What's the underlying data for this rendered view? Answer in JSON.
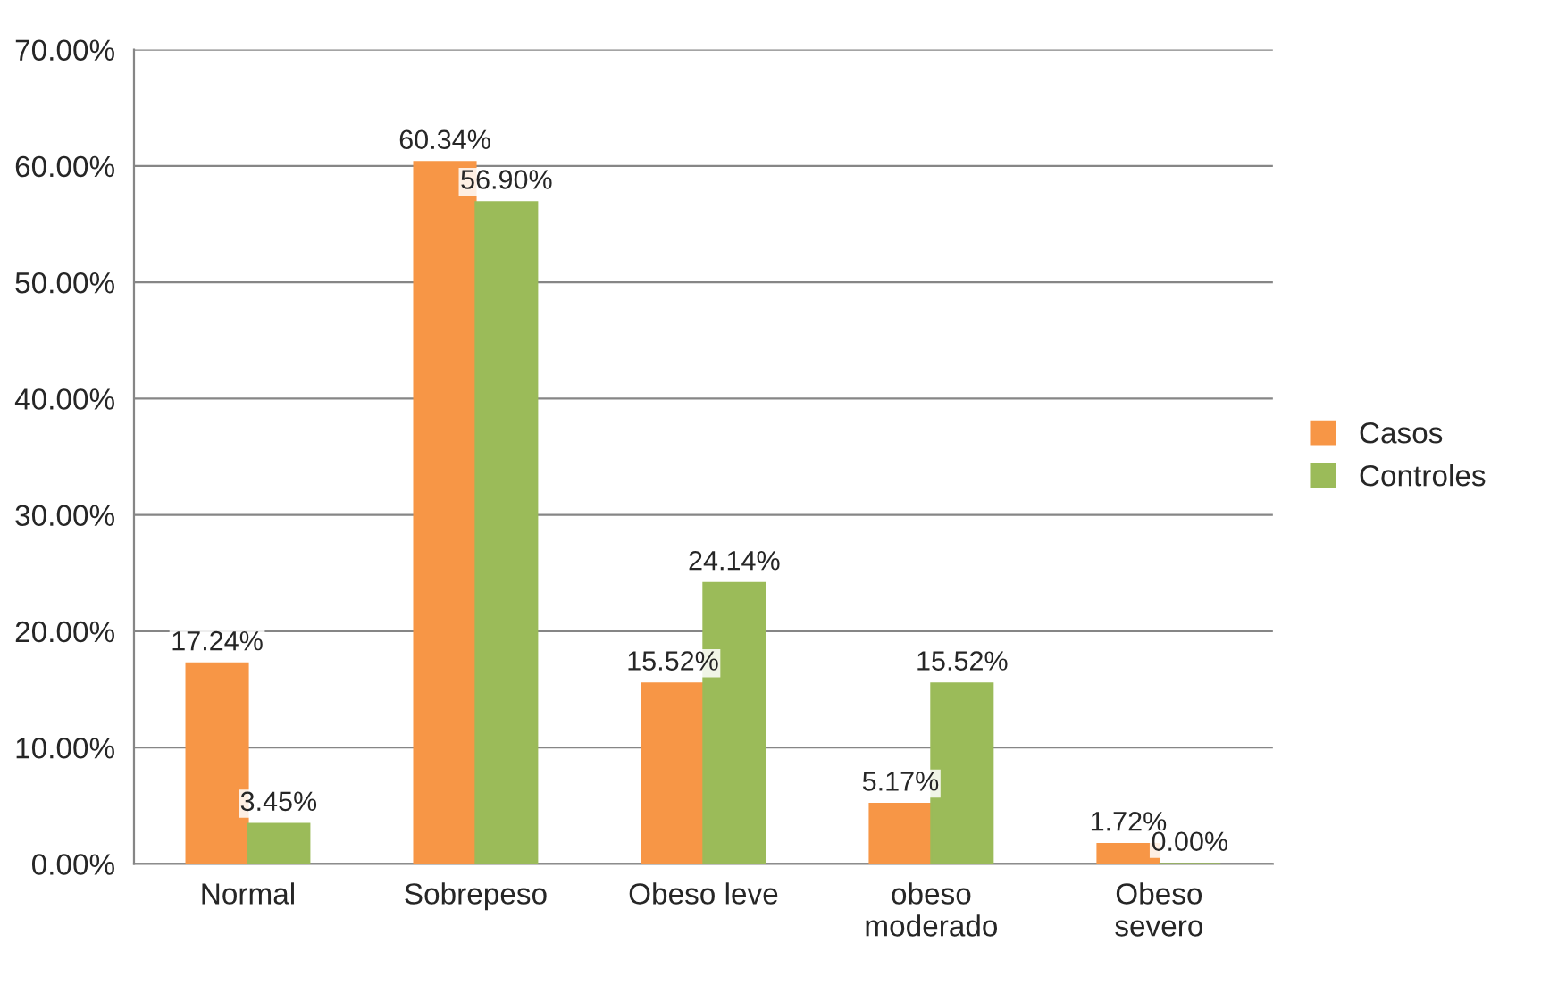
{
  "chart_data": {
    "type": "bar",
    "categories": [
      "Normal",
      "Sobrepeso",
      "Obeso leve",
      "obeso\nmoderado",
      "Obeso\nsevero"
    ],
    "series": [
      {
        "name": "Casos",
        "color": "#f79646",
        "values": [
          17.24,
          60.34,
          15.52,
          5.17,
          1.72
        ],
        "value_labels": [
          "17.24%",
          "60.34%",
          "15.52%",
          "5.17%",
          "1.72%"
        ]
      },
      {
        "name": "Controles",
        "color": "#9bbb59",
        "values": [
          3.45,
          56.9,
          24.14,
          15.52,
          0.0
        ],
        "value_labels": [
          "3.45%",
          "56.90%",
          "24.14%",
          "15.52%",
          "0.00%"
        ]
      }
    ],
    "ylim": [
      0,
      70
    ],
    "yticks": [
      {
        "value": 0,
        "label": "0.00%"
      },
      {
        "value": 10,
        "label": "10.00%"
      },
      {
        "value": 20,
        "label": "20.00%"
      },
      {
        "value": 30,
        "label": "30.00%"
      },
      {
        "value": 40,
        "label": "40.00%"
      },
      {
        "value": 50,
        "label": "50.00%"
      },
      {
        "value": 60,
        "label": "60.00%"
      },
      {
        "value": 70,
        "label": "70.00%"
      }
    ],
    "grid": "y",
    "legend": "right"
  }
}
